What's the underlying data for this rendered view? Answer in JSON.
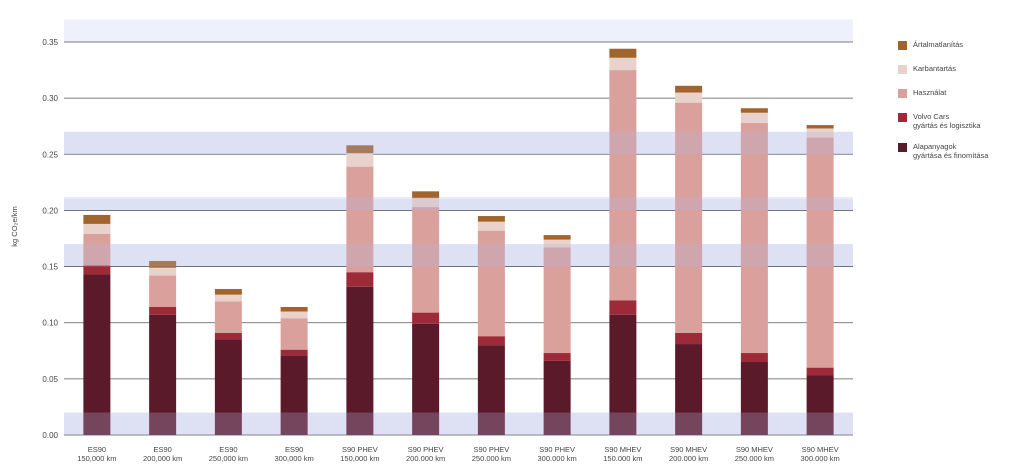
{
  "chart_data": {
    "type": "bar",
    "stacked": true,
    "ylabel": "kg CO₂e/km",
    "ylim": [
      0,
      0.35
    ],
    "yticks": [
      "0.00",
      "0.05",
      "0.10",
      "0.15",
      "0.20",
      "0.25",
      "0.30",
      "0.35"
    ],
    "grid": true,
    "legend_position": "right",
    "categories": [
      [
        "ES90",
        "150,000 km"
      ],
      [
        "ES90",
        "200,000 km"
      ],
      [
        "ES90",
        "250,000 km"
      ],
      [
        "ES90",
        "300,000 km"
      ],
      [
        "S90 PHEV",
        "150,000 km"
      ],
      [
        "S90 PHEV",
        "200.000 km"
      ],
      [
        "S90 PHEV",
        "250.000 km"
      ],
      [
        "S90 PHEV",
        "300.000 km"
      ],
      [
        "S90 MHEV",
        "150.000 km"
      ],
      [
        "S90 MHEV",
        "200.000 km"
      ],
      [
        "S90 MHEV",
        "250.000 km"
      ],
      [
        "S90 MHEV",
        "300.000 km"
      ]
    ],
    "series": [
      {
        "name": "Alapanyagok\ngyártása és finomítása",
        "color": "#5a1a2a",
        "values": [
          0.143,
          0.107,
          0.085,
          0.071,
          0.132,
          0.099,
          0.08,
          0.066,
          0.107,
          0.081,
          0.065,
          0.053
        ]
      },
      {
        "name": "Volvo Cars\ngyártás és logisztika",
        "color": "#9c2a38",
        "values": [
          0.008,
          0.007,
          0.006,
          0.005,
          0.013,
          0.01,
          0.008,
          0.007,
          0.013,
          0.01,
          0.008,
          0.007
        ]
      },
      {
        "name": "Használat",
        "color": "#d9a09c",
        "values": [
          0.028,
          0.028,
          0.028,
          0.028,
          0.094,
          0.094,
          0.094,
          0.094,
          0.205,
          0.205,
          0.205,
          0.205
        ]
      },
      {
        "name": "Karbantartás",
        "color": "#ead2cc",
        "values": [
          0.009,
          0.007,
          0.006,
          0.006,
          0.012,
          0.008,
          0.008,
          0.007,
          0.011,
          0.009,
          0.009,
          0.008
        ]
      },
      {
        "name": "Ártalmatlanítás",
        "color": "#a0642c",
        "values": [
          0.008,
          0.006,
          0.005,
          0.004,
          0.007,
          0.006,
          0.005,
          0.004,
          0.008,
          0.006,
          0.004,
          0.003
        ]
      }
    ],
    "colors": {
      "band": "#eef0fb",
      "overlay": "#b8b8e0",
      "grid": "#555555"
    }
  }
}
